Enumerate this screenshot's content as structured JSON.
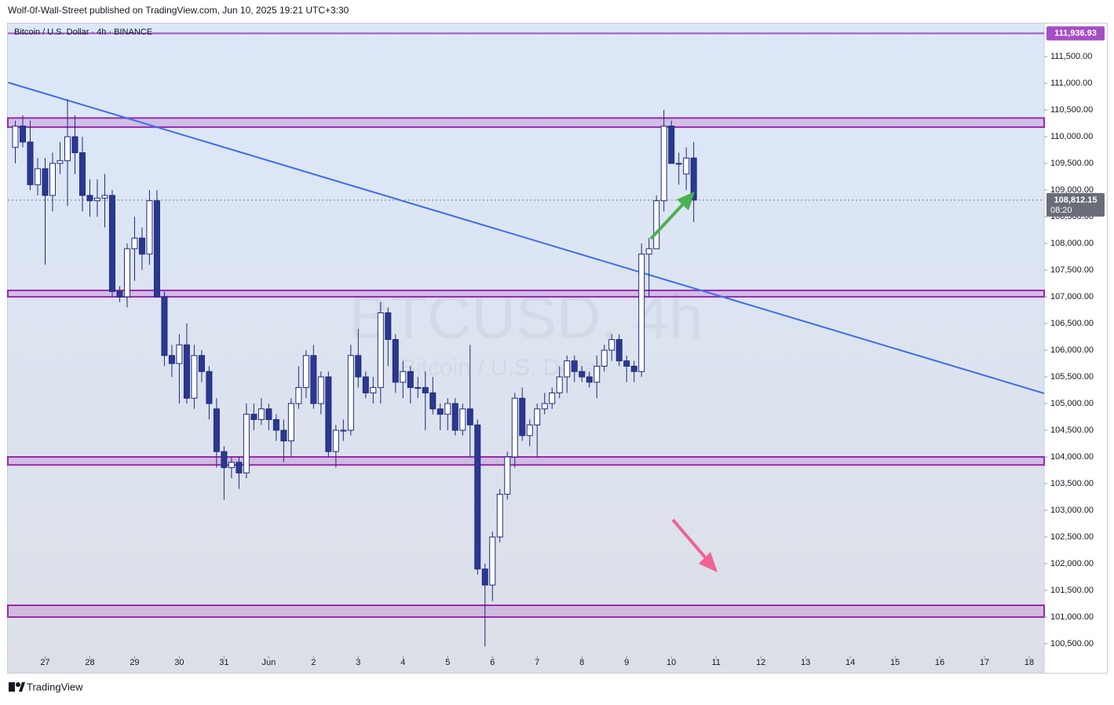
{
  "header": "Wolf-0f-Wall-Street published on TradingView.com, Jun 10, 2025 19:21 UTC+3:30",
  "footer": "TradingView",
  "chart_data": {
    "type": "candlestick",
    "title": "Bitcoin / U.S. Dollar · 4h · BINANCE",
    "watermark": "BTCUSD, 4h",
    "watermark_subtitle": "Bitcoin / U.S. Dollar",
    "up_color": "#ffffff",
    "down_color": "#2a3990",
    "edge_color": "#1f2a7a",
    "x": [
      -4,
      -3,
      -2,
      -1,
      0,
      1,
      2,
      3,
      4,
      5,
      6,
      7,
      8,
      9,
      10,
      11,
      12,
      13,
      14,
      15,
      16,
      17,
      18,
      19,
      20,
      21,
      22,
      23,
      24,
      25,
      26,
      27,
      28,
      29,
      30,
      31,
      32,
      33,
      34,
      35,
      36,
      37,
      38,
      39,
      40,
      41,
      42,
      43,
      44,
      45,
      46,
      47,
      48,
      49,
      50,
      51,
      52,
      53,
      54,
      55,
      56,
      57,
      58,
      59,
      60,
      61,
      62,
      63,
      64,
      65,
      66,
      67,
      68,
      69,
      70,
      71,
      72,
      73,
      74,
      75,
      76,
      77,
      78,
      79,
      80,
      81,
      82,
      83,
      84,
      85,
      86,
      87
    ],
    "open": [
      109800,
      110200,
      109900,
      109100,
      109400,
      108900,
      109500,
      109550,
      110000,
      109700,
      108900,
      108800,
      108850,
      108900,
      107100,
      107000,
      107900,
      108100,
      107800,
      108800,
      107000,
      105900,
      105750,
      106100,
      105100,
      105900,
      105600,
      104900,
      104100,
      103800,
      103900,
      103700,
      104800,
      104700,
      104900,
      104700,
      104500,
      104300,
      105000,
      105300,
      105900,
      105000,
      105500,
      104100,
      104500,
      104500,
      105900,
      105500,
      105200,
      105300,
      106700,
      106200,
      105400,
      105600,
      105300,
      105300,
      105200,
      104900,
      104800,
      105000,
      104500,
      104900,
      104600,
      101900,
      101600,
      102500,
      103300,
      104000,
      105100,
      104400,
      104600,
      104900,
      105000,
      105200,
      105500,
      105800,
      105600,
      105500,
      105400,
      105700,
      106000,
      106200,
      105800,
      105700,
      105600,
      107800,
      107900,
      108800,
      110200,
      109500,
      109300,
      109600
    ],
    "high": [
      110300,
      110400,
      110300,
      109600,
      109600,
      109700,
      109900,
      110700,
      110400,
      110000,
      109200,
      109200,
      109300,
      109000,
      107200,
      108000,
      108500,
      108300,
      109000,
      109000,
      107100,
      106100,
      106300,
      106500,
      106100,
      106000,
      105700,
      105100,
      104200,
      104000,
      104000,
      105000,
      105000,
      105100,
      105000,
      104800,
      104700,
      105100,
      105700,
      106000,
      106100,
      105600,
      105600,
      104600,
      104700,
      106100,
      106400,
      105600,
      105500,
      106900,
      106800,
      106300,
      105800,
      105700,
      105500,
      105600,
      105500,
      105000,
      105100,
      105100,
      105000,
      106100,
      104700,
      102000,
      102600,
      103400,
      104100,
      105200,
      105300,
      104700,
      105000,
      105200,
      105300,
      105700,
      105900,
      105900,
      105700,
      105600,
      105900,
      106100,
      106300,
      106300,
      105900,
      105800,
      108000,
      108100,
      108900,
      110500,
      110300,
      109700,
      109800,
      109900
    ],
    "low": [
      109500,
      109800,
      109000,
      108900,
      107600,
      108600,
      109300,
      108700,
      109300,
      108600,
      108500,
      108500,
      108300,
      107000,
      106900,
      106800,
      107300,
      107500,
      107600,
      107000,
      105700,
      105500,
      105000,
      105000,
      104900,
      105400,
      104700,
      103800,
      103200,
      103600,
      103400,
      103600,
      104500,
      104600,
      104500,
      104300,
      103900,
      104000,
      104900,
      105100,
      104900,
      104800,
      104000,
      103800,
      104300,
      104400,
      105300,
      105100,
      105000,
      105000,
      105700,
      105200,
      105100,
      105000,
      105100,
      104500,
      104800,
      104500,
      104500,
      104400,
      104400,
      104000,
      101800,
      100450,
      101300,
      102400,
      103200,
      103800,
      104300,
      104200,
      104000,
      104800,
      104900,
      105100,
      105200,
      105400,
      105400,
      105300,
      105100,
      105600,
      105800,
      105700,
      105400,
      105400,
      105500,
      107000,
      107900,
      108600,
      109500,
      109100,
      109000,
      108400
    ],
    "close": [
      110200,
      109900,
      109100,
      109400,
      108900,
      109500,
      109550,
      110000,
      109700,
      108900,
      108800,
      108850,
      108900,
      107100,
      107000,
      107900,
      108100,
      107800,
      108800,
      107000,
      105900,
      105750,
      106100,
      105100,
      105900,
      105600,
      105000,
      104100,
      103800,
      103900,
      103700,
      104800,
      104700,
      104900,
      104700,
      104500,
      104300,
      105000,
      105300,
      105900,
      105000,
      105500,
      104100,
      104500,
      104500,
      105900,
      105500,
      105200,
      105300,
      106700,
      106200,
      105400,
      105600,
      105300,
      105300,
      105200,
      104900,
      104800,
      105000,
      104500,
      104900,
      104600,
      101900,
      101600,
      102500,
      103300,
      104000,
      105100,
      104400,
      104600,
      104900,
      105000,
      105200,
      105500,
      105800,
      105600,
      105500,
      105400,
      105700,
      106000,
      106200,
      105800,
      105700,
      105600,
      107800,
      107900,
      108800,
      110200,
      109500,
      109500,
      109600,
      108812.15
    ],
    "xlim": [
      -5,
      134
    ],
    "ylim": [
      99955,
      112120
    ],
    "xticks": [
      {
        "value": 0,
        "label": "27"
      },
      {
        "value": 6,
        "label": "28"
      },
      {
        "value": 12,
        "label": "29"
      },
      {
        "value": 18,
        "label": "30"
      },
      {
        "value": 24,
        "label": "31"
      },
      {
        "value": 30,
        "label": "Jun"
      },
      {
        "value": 36,
        "label": "2"
      },
      {
        "value": 42,
        "label": "3"
      },
      {
        "value": 48,
        "label": "4"
      },
      {
        "value": 54,
        "label": "5"
      },
      {
        "value": 60,
        "label": "6"
      },
      {
        "value": 66,
        "label": "7"
      },
      {
        "value": 72,
        "label": "8"
      },
      {
        "value": 78,
        "label": "9"
      },
      {
        "value": 84,
        "label": "10"
      },
      {
        "value": 90,
        "label": "11"
      },
      {
        "value": 96,
        "label": "12"
      },
      {
        "value": 102,
        "label": "13"
      },
      {
        "value": 108,
        "label": "14"
      },
      {
        "value": 114,
        "label": "15"
      },
      {
        "value": 120,
        "label": "16"
      },
      {
        "value": 126,
        "label": "17"
      },
      {
        "value": 132,
        "label": "18"
      }
    ],
    "yticks": [
      {
        "value": 100500,
        "label": "100,500.00"
      },
      {
        "value": 101000,
        "label": "101,000.00"
      },
      {
        "value": 101500,
        "label": "101,500.00"
      },
      {
        "value": 102000,
        "label": "102,000.00"
      },
      {
        "value": 102500,
        "label": "102,500.00"
      },
      {
        "value": 103000,
        "label": "103,000.00"
      },
      {
        "value": 103500,
        "label": "103,500.00"
      },
      {
        "value": 104000,
        "label": "104,000.00"
      },
      {
        "value": 104500,
        "label": "104,500.00"
      },
      {
        "value": 105000,
        "label": "105,000.00"
      },
      {
        "value": 105500,
        "label": "105,500.00"
      },
      {
        "value": 106000,
        "label": "106,000.00"
      },
      {
        "value": 106500,
        "label": "106,500.00"
      },
      {
        "value": 107000,
        "label": "107,000.00"
      },
      {
        "value": 107500,
        "label": "107,500.00"
      },
      {
        "value": 108000,
        "label": "108,000.00"
      },
      {
        "value": 108500,
        "label": "108,500.00"
      },
      {
        "value": 109000,
        "label": "109,000.00"
      },
      {
        "value": 109500,
        "label": "109,500.00"
      },
      {
        "value": 110000,
        "label": "110,000.00"
      },
      {
        "value": 110500,
        "label": "110,500.00"
      },
      {
        "value": 111000,
        "label": "111,000.00"
      },
      {
        "value": 111500,
        "label": "111,500.00"
      }
    ],
    "zones": [
      {
        "top": 110350,
        "bottom": 110180
      },
      {
        "top": 107120,
        "bottom": 107000
      },
      {
        "top": 104000,
        "bottom": 103850
      },
      {
        "top": 101220,
        "bottom": 101000
      }
    ],
    "zone_color": "#9c27b0",
    "trendline": {
      "x": [
        -4.95,
        134
      ],
      "y": [
        111015,
        105191
      ],
      "color": "#3d6ee8"
    },
    "price_line": {
      "value": 111936.93,
      "label": "111,936.93",
      "color": "#a64fc5"
    },
    "current_price": {
      "value": 108812.15,
      "label": "108,812.15",
      "countdown": "08:20"
    }
  }
}
